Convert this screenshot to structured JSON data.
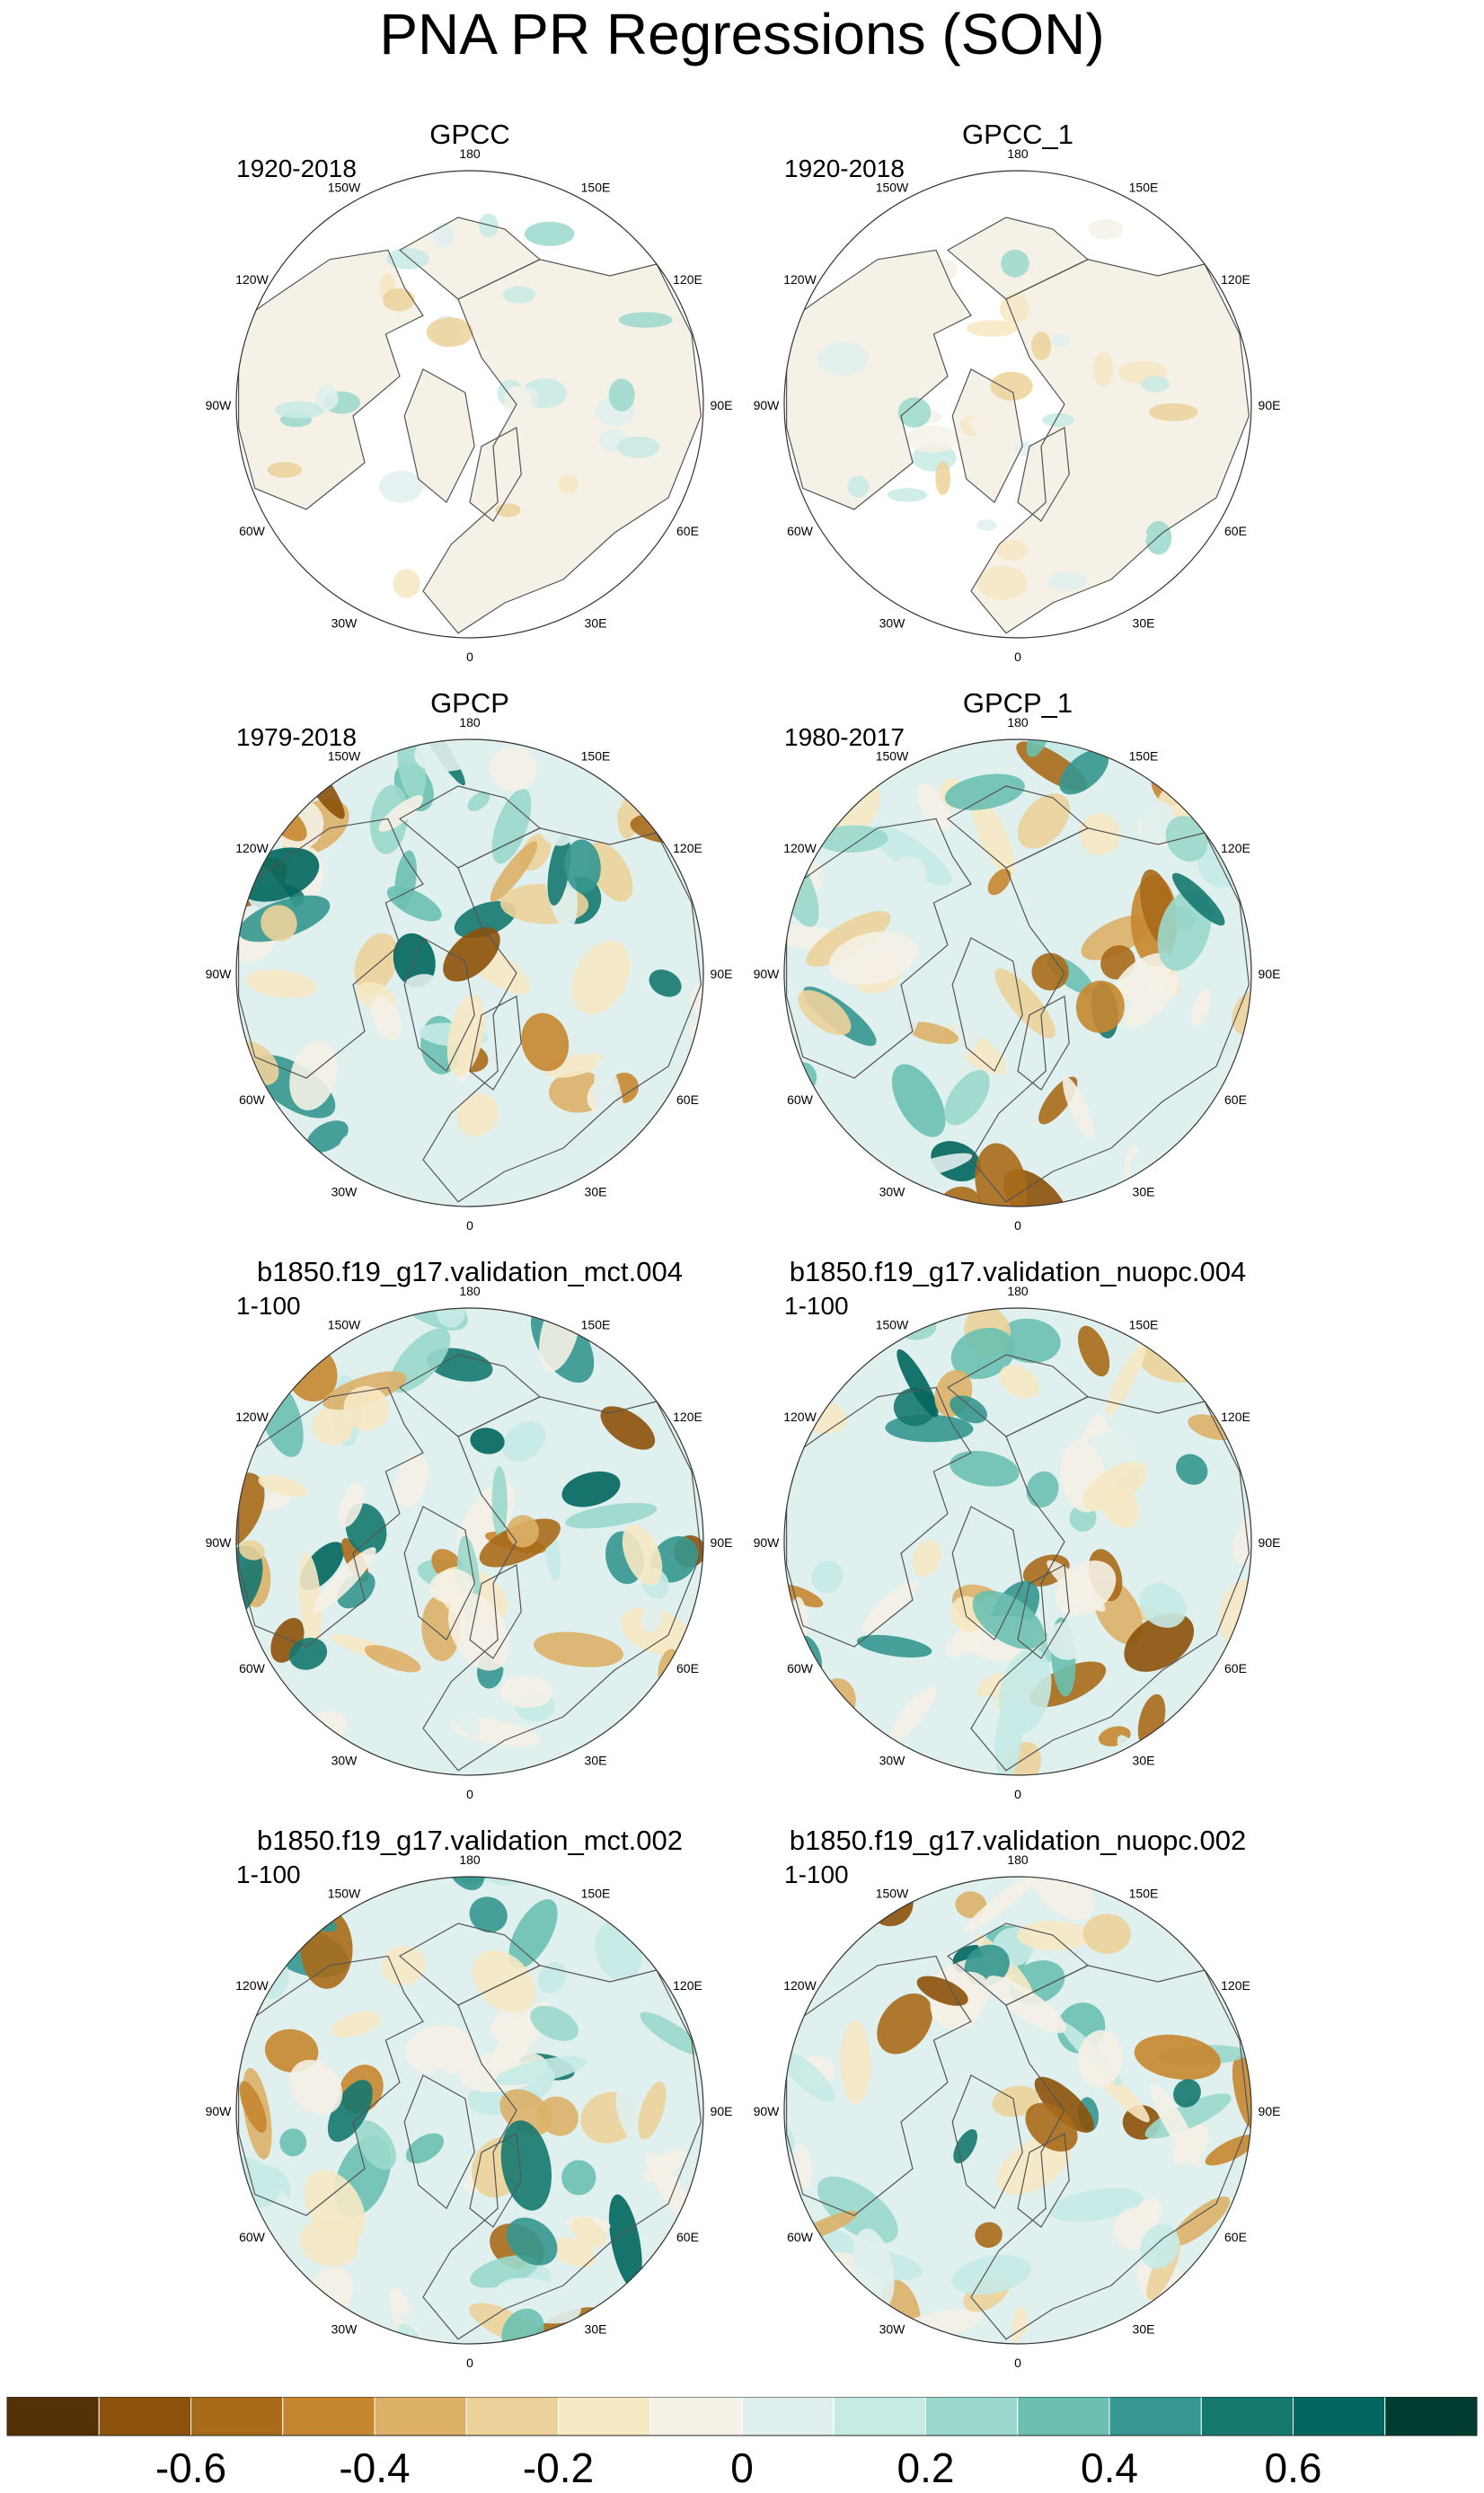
{
  "title": "PNA PR Regressions (SON)",
  "chart_data": {
    "type": "polar-stereographic-map-panels",
    "variable": "PR",
    "season": "SON",
    "projection": "north polar stereographic",
    "longitude_labels": [
      "180",
      "150E",
      "120E",
      "90E",
      "60E",
      "30E",
      "0",
      "30W",
      "60W",
      "90W",
      "120W",
      "150W"
    ],
    "panels": [
      {
        "id": "gpcc",
        "title": "GPCC",
        "period": "1920-2018",
        "data_coverage": "land only"
      },
      {
        "id": "gpcc-1",
        "title": "GPCC_1",
        "period": "1920-2018",
        "data_coverage": "land only"
      },
      {
        "id": "gpcp",
        "title": "GPCP",
        "period": "1979-2018",
        "data_coverage": "global"
      },
      {
        "id": "gpcp-1",
        "title": "GPCP_1",
        "period": "1980-2017",
        "data_coverage": "global"
      },
      {
        "id": "mct-004",
        "title": "b1850.f19_g17.validation_mct.004",
        "period": "1-100",
        "data_coverage": "global"
      },
      {
        "id": "nuopc-004",
        "title": "b1850.f19_g17.validation_nuopc.004",
        "period": "1-100",
        "data_coverage": "global"
      },
      {
        "id": "mct-002",
        "title": "b1850.f19_g17.validation_mct.002",
        "period": "1-100",
        "data_coverage": "global"
      },
      {
        "id": "nuopc-002",
        "title": "b1850.f19_g17.validation_nuopc.002",
        "period": "1-100",
        "data_coverage": "global"
      }
    ],
    "colorbar": {
      "levels": [
        -0.7,
        -0.6,
        -0.5,
        -0.4,
        -0.3,
        -0.2,
        -0.1,
        0,
        0.1,
        0.2,
        0.3,
        0.4,
        0.5,
        0.6,
        0.7
      ],
      "tick_labels": [
        "-0.6",
        "-0.4",
        "-0.2",
        "0",
        "0.2",
        "0.4",
        "0.6"
      ],
      "tick_values": [
        -0.6,
        -0.4,
        -0.2,
        0,
        0.2,
        0.4,
        0.6
      ],
      "colors": [
        "#543005",
        "#8c510a",
        "#a96a1a",
        "#c6862f",
        "#dcb067",
        "#ecd29a",
        "#f6e8c3",
        "#f5f1e6",
        "#e0f0ee",
        "#c7eae5",
        "#9ad8cc",
        "#6cc0b1",
        "#35978f",
        "#15786f",
        "#01665e",
        "#003c30"
      ],
      "range": [
        -0.8,
        0.8
      ]
    }
  }
}
